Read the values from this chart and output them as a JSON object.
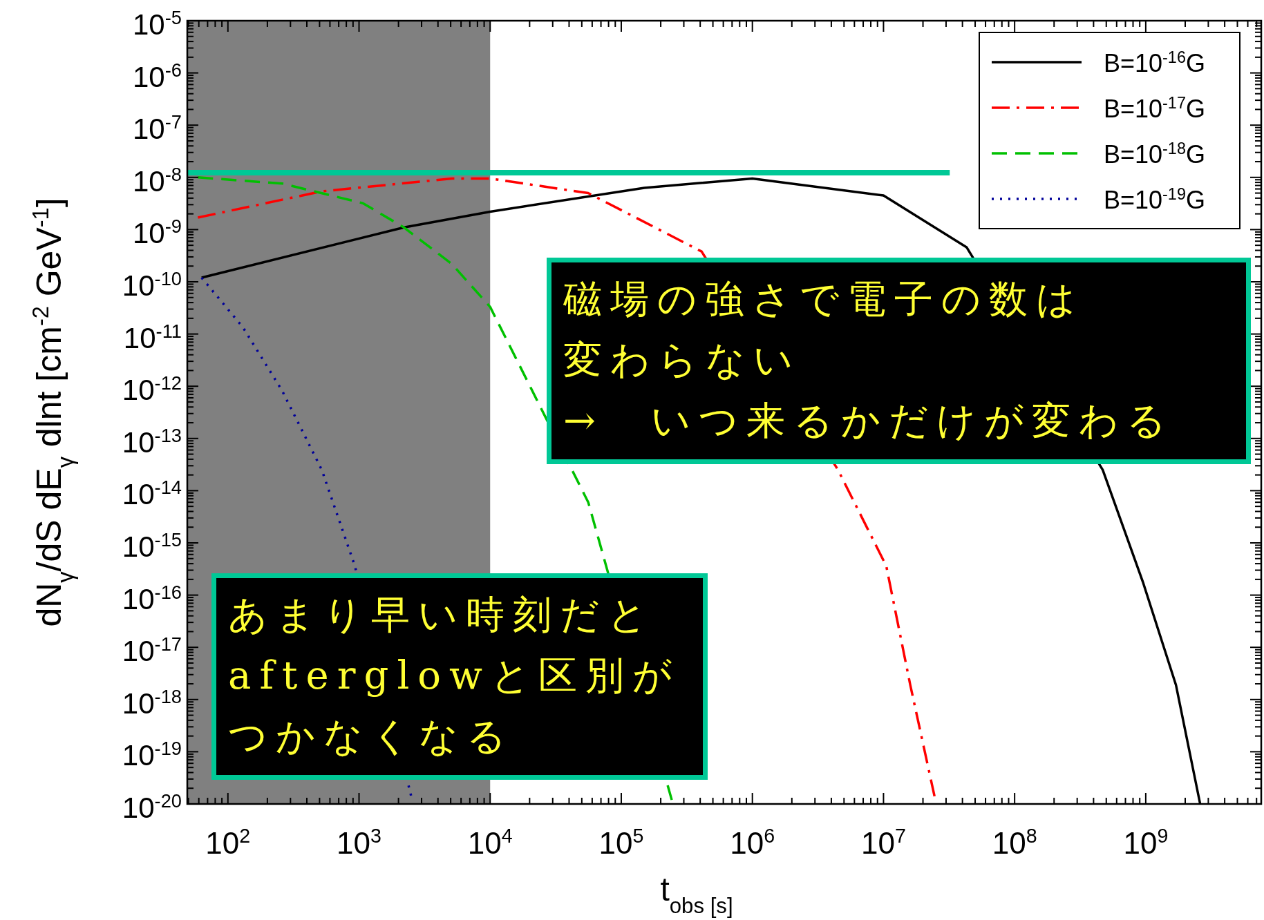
{
  "chart_data": {
    "type": "line",
    "xlabel": "t$_{obs [s]}$",
    "ylabel": "dN$_{γ}$/dS dE$_{γ}$ dlnt [cm$^{-2}$ GeV$^{-1}$]",
    "log": "xy",
    "xlim": [
      49,
      7600000000
    ],
    "ylim": [
      1e-20,
      1e-05
    ],
    "xticks": [
      {
        "value": 100,
        "label": "10$^{2}$"
      },
      {
        "value": 1000,
        "label": "10$^{3}$"
      },
      {
        "value": 10000,
        "label": "10$^{4}$"
      },
      {
        "value": 100000,
        "label": "10$^{5}$"
      },
      {
        "value": 1000000,
        "label": "10$^{6}$"
      },
      {
        "value": 10000000,
        "label": "10$^{7}$"
      },
      {
        "value": 100000000,
        "label": "10$^{8}$"
      },
      {
        "value": 1000000000,
        "label": "10$^{9}$"
      }
    ],
    "yticks": [
      {
        "value": 1e-20,
        "label": "10$^{-20}$"
      },
      {
        "value": 1e-19,
        "label": "10$^{-19}$"
      },
      {
        "value": 1e-18,
        "label": "10$^{-18}$"
      },
      {
        "value": 1e-17,
        "label": "10$^{-17}$"
      },
      {
        "value": 1e-16,
        "label": "10$^{-16}$"
      },
      {
        "value": 1e-15,
        "label": "10$^{-15}$"
      },
      {
        "value": 1e-14,
        "label": "10$^{-14}$"
      },
      {
        "value": 1e-13,
        "label": "10$^{-13}$"
      },
      {
        "value": 1e-12,
        "label": "10$^{-12}$"
      },
      {
        "value": 1e-11,
        "label": "10$^{-11}$"
      },
      {
        "value": 1e-10,
        "label": "10$^{-10}$"
      },
      {
        "value": 1e-09,
        "label": "10$^{-9}$"
      },
      {
        "value": 1e-08,
        "label": "10$^{-8}$"
      },
      {
        "value": 1e-07,
        "label": "10$^{-7}$"
      },
      {
        "value": 1e-06,
        "label": "10$^{-6}$"
      },
      {
        "value": 1e-05,
        "label": "10$^{-5}$"
      }
    ],
    "legend": "top right",
    "bands": [
      {
        "axis": "x",
        "from": 49,
        "to": 10000,
        "color": "#808080"
      }
    ],
    "series": [
      {
        "name": "B=10$^{-16}$G",
        "color": "#000000",
        "line_style": "solid",
        "x": [
          63,
          2200,
          10000,
          150000,
          1000000,
          10000000,
          43000000,
          470000000,
          950000000,
          1700000000,
          2600000000
        ],
        "values": [
          1.2e-10,
          1.1e-09,
          2.2e-09,
          6.3e-09,
          9.5e-09,
          4.5e-09,
          4.6e-10,
          2.5e-14,
          1.8e-16,
          1.9e-18,
          1e-20
        ]
      },
      {
        "name": "B=10$^{-17}$G",
        "color": "#ff0000",
        "line_style": "dashdot",
        "x": [
          59,
          520,
          5100,
          10000,
          56000,
          410000,
          4500000,
          10500000,
          16000000,
          24500000
        ],
        "values": [
          1.7e-09,
          5.4e-09,
          9.5e-09,
          9.5e-09,
          5e-09,
          3.8e-10,
          2.5e-14,
          3.6e-16,
          1.9e-18,
          1.4e-20
        ]
      },
      {
        "name": "B=10$^{-18}$G",
        "color": "#00c000",
        "line_style": "dashed",
        "x": [
          59,
          260,
          1070,
          2200,
          5100,
          10000,
          56000,
          245000
        ],
        "values": [
          1e-08,
          7.6e-09,
          3.2e-09,
          1.1e-09,
          2.2e-10,
          3.3e-11,
          6e-15,
          1.1e-20
        ]
      },
      {
        "name": "B=10$^{-19}$G",
        "color": "#000099",
        "line_style": "dotted",
        "x": [
          63,
          130,
          260,
          520,
          930,
          2500
        ],
        "values": [
          1.2e-10,
          1.35e-11,
          8.1e-13,
          2.5e-14,
          3.6e-16,
          1.4e-20
        ]
      },
      {
        "color": "#00c896",
        "line_style": "solid",
        "x": [
          49,
          32000000
        ],
        "values": [
          1.23e-08,
          1.23e-08
        ]
      }
    ],
    "annotations": [
      "磁場の強さで電子の数は",
      "変わらない",
      "→　いつ来るかだけが変わる",
      "あまり早い時刻だと",
      "afterglowと区別が",
      "つかなくなる"
    ]
  }
}
